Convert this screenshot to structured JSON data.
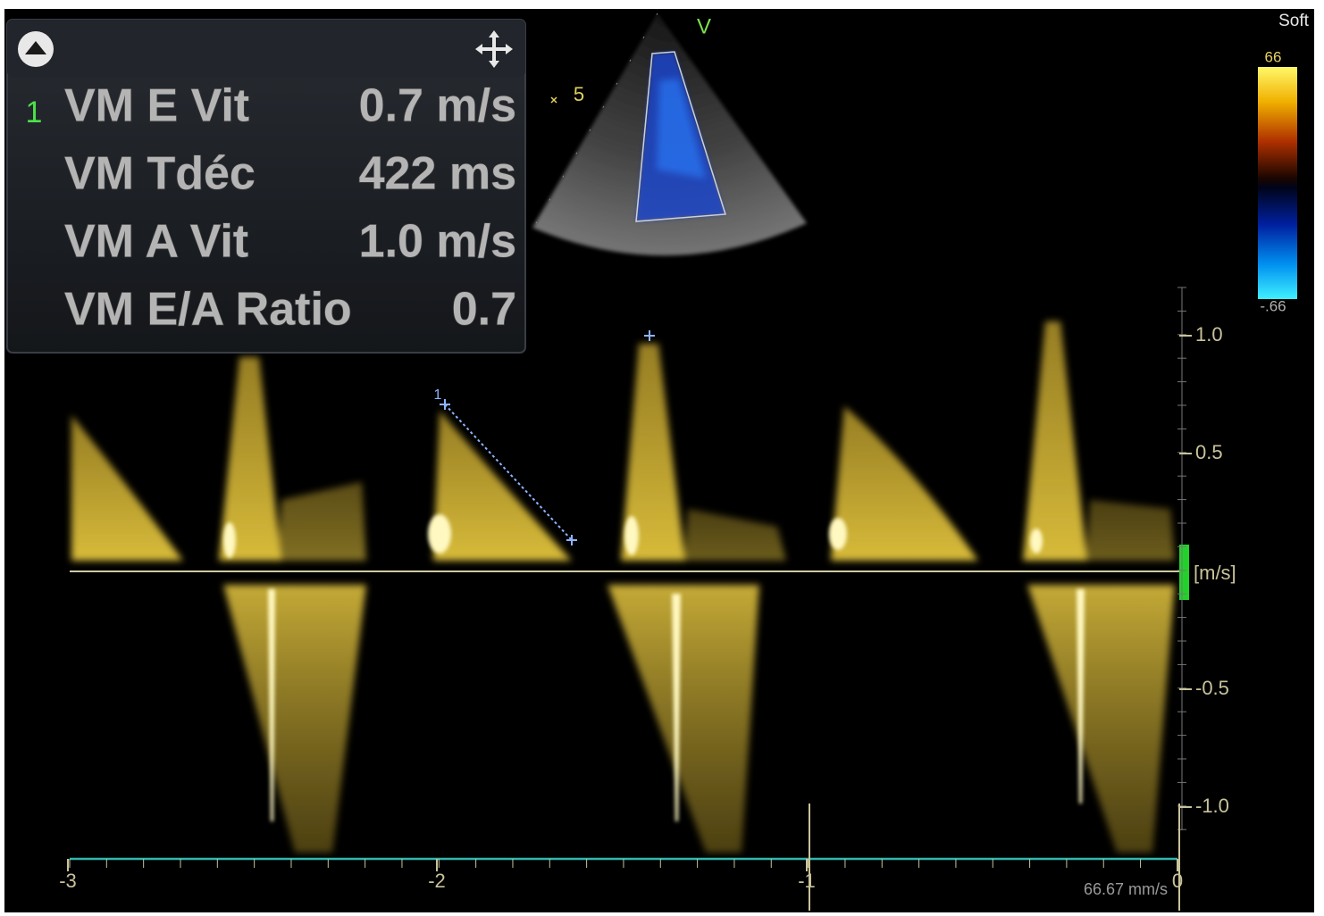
{
  "panel": {
    "rows": [
      {
        "index": "1",
        "label": "VM E Vit",
        "value": "0.7 m/s"
      },
      {
        "label": "VM Tdéc",
        "value": "422 ms"
      },
      {
        "label": "VM A Vit",
        "value": "1.0 m/s"
      },
      {
        "label": "VM E/A Ratio",
        "value": "0.7"
      }
    ]
  },
  "sector": {
    "marker": "V",
    "depth": "5"
  },
  "color_bar": {
    "label": "Soft",
    "max": "66",
    "min": "-.66"
  },
  "velocity_axis": {
    "unit": "[m/s]",
    "labels": [
      "1.0",
      "0.5",
      "-0.5",
      "-1.0"
    ]
  },
  "time_axis": {
    "labels": [
      "-3",
      "-2",
      "-1",
      "0"
    ],
    "sweep_speed": "66.67 mm/s"
  },
  "caliper": {
    "label": "1"
  }
}
